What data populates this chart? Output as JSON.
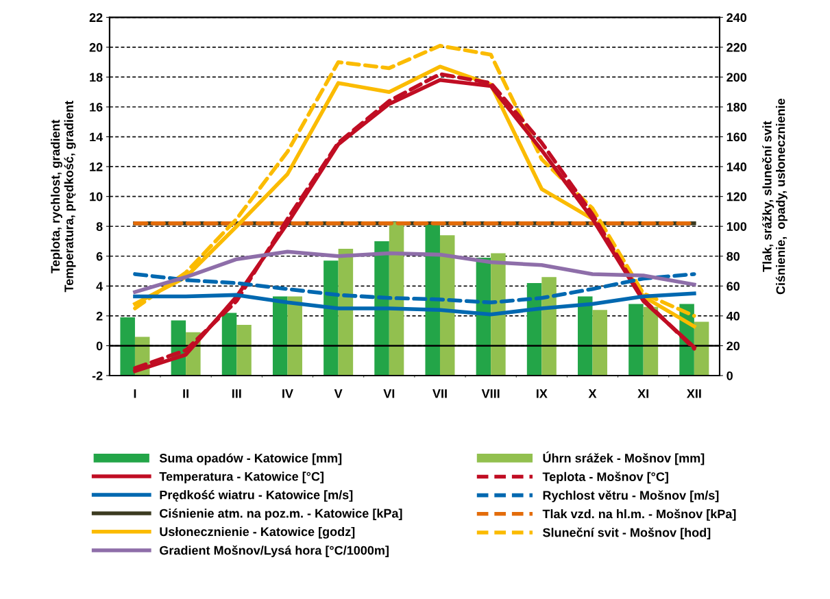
{
  "chart_data": {
    "type": "line",
    "categories": [
      "I",
      "II",
      "III",
      "IV",
      "V",
      "VI",
      "VII",
      "VIII",
      "IX",
      "X",
      "XI",
      "XII"
    ],
    "ylabel": "Teplota, rychlost, gradient\nTemperatura, prędkość, gradient",
    "y2label": "Tlak, srážky, sluneční svit\nCiśnienie,  opady, usłonecznienie",
    "ylim": [
      -2,
      22
    ],
    "yticks": [
      -2,
      0,
      2,
      4,
      6,
      8,
      10,
      12,
      14,
      16,
      18,
      20,
      22
    ],
    "y2lim": [
      0,
      240
    ],
    "y2ticks": [
      0,
      20,
      40,
      60,
      80,
      100,
      120,
      140,
      160,
      180,
      200,
      220,
      240
    ],
    "grid": true,
    "legend": "bottom",
    "ref_lines": [
      {
        "axis": "y",
        "value": 0,
        "color": "#000000",
        "line_style": "solid"
      }
    ],
    "series": [
      {
        "name": "Suma opadów - Katowice [mm]",
        "type": "bar",
        "axis": "y2",
        "color": "#23a548",
        "values": [
          39,
          37,
          42,
          53,
          77,
          90,
          101,
          79,
          62,
          53,
          48,
          48
        ]
      },
      {
        "name": "Úhrn srážek - Mošnov [mm]",
        "type": "bar",
        "axis": "y2",
        "color": "#92c04f",
        "values": [
          26,
          29,
          34,
          53,
          85,
          103,
          94,
          82,
          66,
          44,
          46,
          36
        ]
      },
      {
        "name": "Temperatura - Katowice [°C]",
        "color": "#c00d23",
        "line_style": "solid",
        "values": [
          -1.7,
          -0.6,
          3.3,
          8.2,
          13.5,
          16.2,
          17.8,
          17.4,
          13.1,
          8.5,
          3.0,
          -0.1
        ]
      },
      {
        "name": "Teplota - Mošnov [°C]",
        "color": "#c00d23",
        "line_style": "dashed",
        "values": [
          -1.5,
          -0.3,
          3.0,
          8.5,
          13.6,
          16.4,
          18.2,
          17.6,
          13.6,
          8.8,
          3.1,
          -0.2
        ]
      },
      {
        "name": "Prędkość wiatru - Katowice [m/s]",
        "color": "#0068b0",
        "line_style": "solid",
        "values": [
          3.3,
          3.3,
          3.4,
          2.9,
          2.5,
          2.5,
          2.4,
          2.1,
          2.5,
          2.8,
          3.3,
          3.5
        ]
      },
      {
        "name": "Rychlost větru - Mošnov [m/s]",
        "color": "#0068b0",
        "line_style": "dashed",
        "values": [
          4.8,
          4.4,
          4.2,
          3.8,
          3.4,
          3.2,
          3.1,
          2.9,
          3.2,
          3.8,
          4.5,
          4.8
        ]
      },
      {
        "name": "Ciśnienie atm. na poz.m. - Katowice [kPa]",
        "axis": "y2",
        "color": "#3b3a20",
        "line_style": "solid",
        "values": [
          102,
          102,
          102,
          102,
          102,
          102,
          102,
          102,
          102,
          102,
          102,
          102
        ]
      },
      {
        "name": "Tlak vzd. na hl.m. - Mošnov [kPa]",
        "axis": "y2",
        "color": "#e36c0a",
        "line_style": "dashed",
        "values": [
          102,
          102,
          102,
          102,
          102,
          102,
          102,
          102,
          102,
          102,
          102,
          102
        ]
      },
      {
        "name": "Usłonecznienie - Katowice [godz]",
        "axis": "y2",
        "color": "#fbbb00",
        "line_style": "solid",
        "values": [
          48,
          66,
          100,
          135,
          196,
          190,
          207,
          195,
          125,
          105,
          53,
          33
        ]
      },
      {
        "name": "Sluneční svit - Mošnov [hod]",
        "axis": "y2",
        "color": "#fbbb00",
        "line_style": "dashed",
        "values": [
          45,
          69,
          105,
          150,
          210,
          206,
          221,
          215,
          145,
          112,
          55,
          40
        ]
      },
      {
        "name": "Gradient Mošnov/Lysá hora [°C/1000m]",
        "color": "#8e6ea9",
        "line_style": "solid",
        "values": [
          3.6,
          4.6,
          5.8,
          6.3,
          6.0,
          6.2,
          6.1,
          5.6,
          5.4,
          4.8,
          4.7,
          4.1
        ]
      }
    ]
  }
}
